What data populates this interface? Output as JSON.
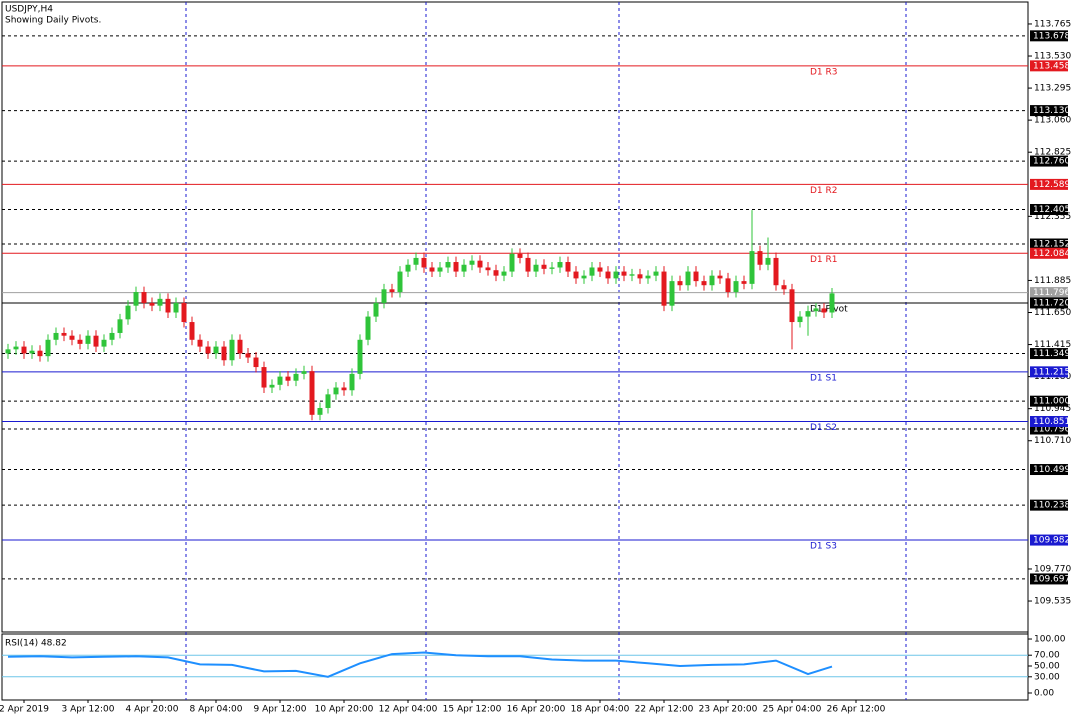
{
  "chart_data": {
    "type": "candlestick",
    "title": "USDJPY,H4",
    "subtitle": "Showing Daily Pivots.",
    "xlim": [
      -0.75,
      127.5
    ],
    "xticks": [
      {
        "value": 2,
        "label": "2 Apr 2019"
      },
      {
        "value": 10,
        "label": "3 Apr 12:00"
      },
      {
        "value": 18,
        "label": "4 Apr 20:00"
      },
      {
        "value": 26,
        "label": "8 Apr 04:00"
      },
      {
        "value": 34,
        "label": "9 Apr 12:00"
      },
      {
        "value": 42,
        "label": "10 Apr 20:00"
      },
      {
        "value": 50,
        "label": "12 Apr 04:00"
      },
      {
        "value": 58,
        "label": "15 Apr 12:00"
      },
      {
        "value": 66,
        "label": "16 Apr 20:00"
      },
      {
        "value": 74,
        "label": "18 Apr 04:00"
      },
      {
        "value": 82,
        "label": "22 Apr 12:00"
      },
      {
        "value": 90,
        "label": "23 Apr 20:00"
      },
      {
        "value": 98,
        "label": "25 Apr 04:00"
      },
      {
        "value": 106,
        "label": "26 Apr 12:00"
      }
    ],
    "ylim": [
      109.308,
      113.926
    ],
    "yticks": [
      113.765,
      {
        "value": 113.53,
        "label": "113.530"
      },
      113.295,
      {
        "value": 113.06,
        "label": "113.060"
      },
      112.825,
      112.355,
      111.885,
      {
        "value": 111.65,
        "label": "111.650"
      },
      111.415,
      {
        "value": 111.18,
        "label": "111.180"
      },
      110.945,
      {
        "value": 110.71,
        "label": "110.710"
      },
      {
        "value": 109.77,
        "label": "109.770"
      },
      109.535
    ],
    "up_color": "#2fc43a",
    "down_color": "#e3191f",
    "open": [
      111.35,
      111.38,
      111.4,
      111.35,
      111.37,
      111.33,
      111.45,
      111.5,
      111.48,
      111.45,
      111.42,
      111.48,
      111.4,
      111.45,
      111.5,
      111.6,
      111.7,
      111.8,
      111.72,
      111.7,
      111.75,
      111.65,
      111.72,
      111.58,
      111.45,
      111.4,
      111.35,
      111.4,
      111.3,
      111.45,
      111.35,
      111.32,
      111.25,
      111.1,
      111.12,
      111.18,
      111.15,
      111.2,
      111.22,
      110.9,
      110.95,
      111.05,
      111.1,
      111.08,
      111.2,
      111.45,
      111.62,
      111.72,
      111.82,
      111.8,
      111.95,
      112.0,
      112.05,
      111.98,
      111.95,
      111.98,
      112.02,
      111.95,
      112.0,
      112.03,
      111.98,
      111.96,
      111.92,
      111.95,
      112.08,
      112.05,
      111.95,
      112.0,
      111.97,
      111.98,
      112.02,
      111.95,
      111.9,
      111.92,
      111.98,
      111.95,
      111.9,
      111.95,
      111.92,
      111.93,
      111.9,
      111.92,
      111.95,
      111.7,
      111.88,
      111.85,
      111.95,
      111.88,
      111.85,
      111.92,
      111.9,
      111.8,
      111.88,
      111.86,
      112.1,
      112.0,
      112.05,
      111.85,
      111.82,
      111.58,
      111.62,
      111.66,
      111.68,
      111.65
    ],
    "high": [
      111.42,
      111.44,
      111.44,
      111.41,
      111.41,
      111.49,
      111.54,
      111.54,
      111.52,
      111.49,
      111.52,
      111.52,
      111.49,
      111.54,
      111.64,
      111.74,
      111.84,
      111.84,
      111.76,
      111.79,
      111.79,
      111.76,
      111.76,
      111.62,
      111.49,
      111.44,
      111.44,
      111.44,
      111.49,
      111.49,
      111.39,
      111.36,
      111.29,
      111.16,
      111.22,
      111.22,
      111.24,
      111.26,
      111.26,
      110.99,
      111.09,
      111.14,
      111.14,
      111.24,
      111.49,
      111.66,
      111.76,
      111.86,
      111.86,
      111.99,
      112.04,
      112.09,
      112.09,
      112.02,
      112.02,
      112.06,
      112.06,
      112.04,
      112.07,
      112.07,
      112.02,
      112.0,
      111.99,
      112.12,
      112.12,
      112.09,
      112.04,
      112.04,
      112.02,
      112.06,
      112.06,
      111.99,
      111.96,
      112.02,
      112.02,
      111.99,
      111.99,
      111.99,
      111.97,
      111.97,
      111.96,
      111.99,
      111.99,
      111.92,
      111.92,
      111.99,
      111.99,
      111.92,
      111.96,
      111.96,
      111.94,
      111.92,
      111.92,
      112.4,
      112.14,
      112.2,
      112.09,
      111.89,
      111.86,
      111.66,
      111.7,
      111.72,
      111.72,
      111.83
    ],
    "low": [
      111.31,
      111.34,
      111.31,
      111.31,
      111.29,
      111.29,
      111.41,
      111.44,
      111.41,
      111.38,
      111.38,
      111.36,
      111.36,
      111.41,
      111.46,
      111.56,
      111.66,
      111.68,
      111.66,
      111.66,
      111.61,
      111.61,
      111.54,
      111.41,
      111.36,
      111.31,
      111.31,
      111.26,
      111.26,
      111.31,
      111.28,
      111.21,
      111.06,
      111.06,
      111.08,
      111.11,
      111.11,
      111.16,
      110.86,
      110.86,
      110.91,
      111.01,
      111.04,
      111.04,
      111.16,
      111.41,
      111.58,
      111.68,
      111.76,
      111.76,
      111.91,
      111.96,
      111.94,
      111.91,
      111.91,
      111.94,
      111.91,
      111.91,
      111.96,
      111.94,
      111.92,
      111.88,
      111.88,
      111.91,
      112.01,
      111.91,
      111.91,
      111.93,
      111.93,
      111.94,
      111.91,
      111.86,
      111.86,
      111.88,
      111.91,
      111.86,
      111.86,
      111.88,
      111.88,
      111.86,
      111.86,
      111.88,
      111.66,
      111.66,
      111.81,
      111.81,
      111.84,
      111.81,
      111.81,
      111.86,
      111.76,
      111.76,
      111.82,
      111.82,
      111.96,
      111.96,
      111.81,
      111.78,
      111.38,
      111.54,
      111.48,
      111.62,
      111.61,
      111.61
    ],
    "close": [
      111.38,
      111.4,
      111.35,
      111.37,
      111.33,
      111.45,
      111.5,
      111.48,
      111.45,
      111.42,
      111.48,
      111.4,
      111.45,
      111.5,
      111.6,
      111.7,
      111.8,
      111.72,
      111.7,
      111.75,
      111.65,
      111.72,
      111.58,
      111.45,
      111.4,
      111.35,
      111.4,
      111.3,
      111.45,
      111.35,
      111.32,
      111.25,
      111.1,
      111.12,
      111.18,
      111.15,
      111.2,
      111.22,
      110.9,
      110.95,
      111.05,
      111.1,
      111.08,
      111.2,
      111.45,
      111.62,
      111.72,
      111.82,
      111.8,
      111.95,
      112.0,
      112.05,
      111.98,
      111.95,
      111.98,
      112.02,
      111.95,
      112.0,
      112.03,
      111.98,
      111.96,
      111.92,
      111.95,
      112.08,
      112.05,
      111.95,
      112.0,
      111.97,
      111.98,
      112.02,
      111.95,
      111.9,
      111.92,
      111.98,
      111.95,
      111.9,
      111.95,
      111.92,
      111.93,
      111.9,
      111.92,
      111.95,
      111.7,
      111.88,
      111.85,
      111.95,
      111.88,
      111.85,
      111.92,
      111.9,
      111.8,
      111.88,
      111.86,
      112.1,
      112.0,
      112.05,
      111.85,
      111.82,
      111.58,
      111.62,
      111.66,
      111.68,
      111.65,
      111.79
    ],
    "levels": [
      {
        "value": 113.678
      },
      {
        "value": 113.13,
        "label": "113.130"
      },
      {
        "value": 112.76,
        "label": "112.760"
      },
      {
        "value": 112.405
      },
      {
        "value": 112.152
      },
      {
        "value": 111.349
      },
      {
        "value": 111,
        "label": "111.000"
      },
      {
        "value": 110.796
      },
      {
        "value": 110.499
      },
      {
        "value": 110.238
      },
      {
        "value": 109.697
      }
    ],
    "level_color": "#000000",
    "bid": 111.796,
    "bid_color": "#a0a0a0",
    "pivots": [
      {
        "name": "D1 R3",
        "value": 113.458,
        "color": "#e3191f"
      },
      {
        "name": "D1 R2",
        "value": 112.589,
        "color": "#e3191f"
      },
      {
        "name": "D1 R1",
        "value": 112.084,
        "color": "#e3191f"
      },
      {
        "name": "D1 Pivot",
        "value": 111.72,
        "label": "111.720",
        "color": "#000000"
      },
      {
        "name": "D1 S1",
        "value": 111.215,
        "color": "#1a1ad0"
      },
      {
        "name": "D1 S2",
        "value": 110.851,
        "color": "#1a1ad0"
      },
      {
        "name": "D1 S3",
        "value": 109.982,
        "color": "#1a1ad0"
      }
    ],
    "rsi": {
      "title": "RSI(14) 48.82",
      "color": "#1e8fff",
      "x": [
        0,
        4,
        8,
        12,
        16,
        20,
        24,
        28,
        32,
        36,
        40,
        44,
        48,
        52,
        56,
        60,
        64,
        68,
        72,
        76,
        80,
        84,
        88,
        92,
        96,
        100,
        103
      ],
      "values": [
        67,
        68,
        66,
        67,
        68,
        66,
        53,
        52,
        40,
        41,
        30,
        55,
        72,
        75,
        70,
        68,
        68,
        62,
        60,
        60,
        55,
        50,
        52,
        53,
        60,
        35,
        48.82
      ],
      "ylim": [
        -13,
        109.3
      ],
      "yticks": [
        {
          "value": 100,
          "label": "100.00"
        },
        {
          "value": 70,
          "label": "70.00"
        },
        {
          "value": 50,
          "label": "50.00"
        },
        {
          "value": 30,
          "label": "30.00"
        },
        {
          "value": 0,
          "label": "0.00"
        }
      ],
      "levels": [
        70,
        30
      ],
      "level_color": "#6fc6e8"
    }
  }
}
